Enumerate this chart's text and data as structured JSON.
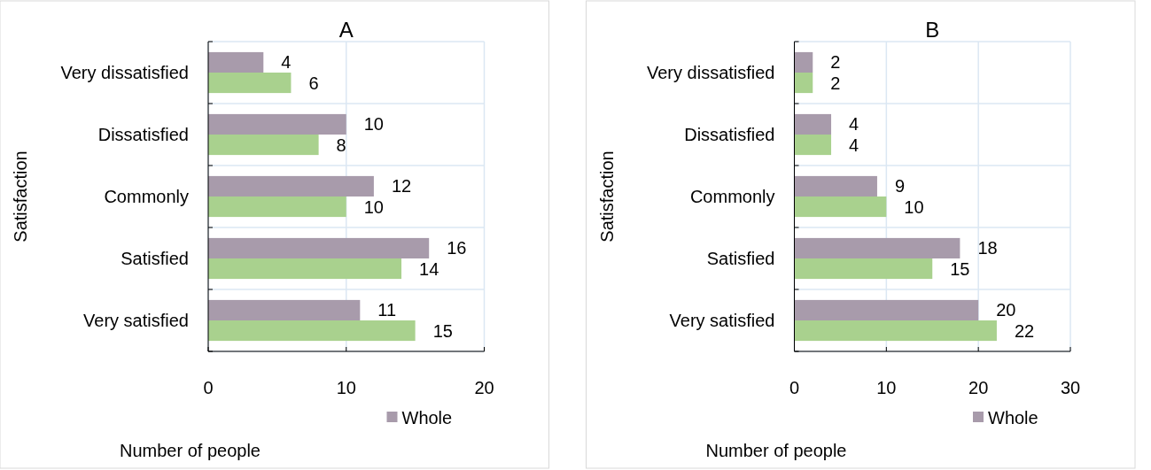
{
  "chart_data": [
    {
      "type": "bar",
      "orientation": "horizontal",
      "title": "A",
      "xlabel": "Number of people",
      "ylabel": "Satisfaction",
      "categories": [
        "Very dissatisfied",
        "Dissatisfied",
        "Commonly",
        "Satisfied",
        "Very satisfied"
      ],
      "series": [
        {
          "name": "Whole",
          "color": "#a89bab",
          "values": [
            4,
            10,
            12,
            16,
            11
          ]
        },
        {
          "color": "#a9d18e",
          "values": [
            6,
            8,
            10,
            14,
            15
          ]
        }
      ],
      "xlim": [
        0,
        20
      ],
      "xticks": [
        0,
        10,
        20
      ],
      "grid": true,
      "legend": "bottom right",
      "data_labels": true
    },
    {
      "type": "bar",
      "orientation": "horizontal",
      "title": "B",
      "xlabel": "Number of people",
      "ylabel": "Satisfaction",
      "categories": [
        "Very dissatisfied",
        "Dissatisfied",
        "Commonly",
        "Satisfied",
        "Very satisfied"
      ],
      "series": [
        {
          "name": "Whole",
          "color": "#a89bab",
          "values": [
            2,
            4,
            9,
            18,
            20
          ]
        },
        {
          "color": "#a9d18e",
          "values": [
            2,
            4,
            10,
            15,
            22
          ]
        }
      ],
      "xlim": [
        0,
        30
      ],
      "xticks": [
        0,
        10,
        20,
        30
      ],
      "grid": true,
      "legend": "bottom right",
      "data_labels": true
    }
  ]
}
